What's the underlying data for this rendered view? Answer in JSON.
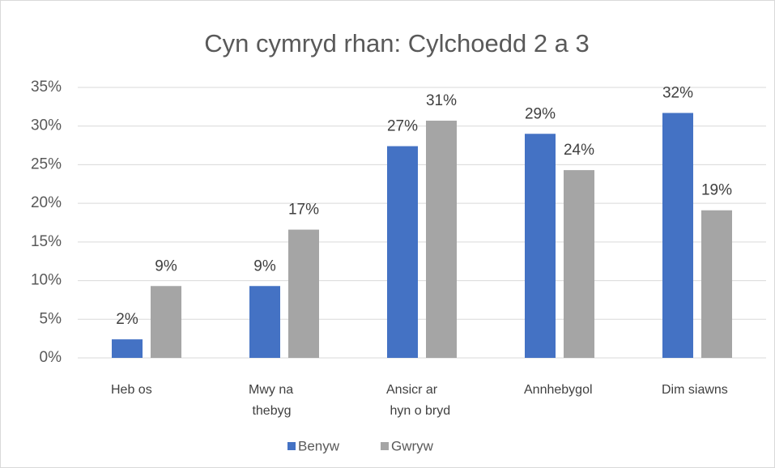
{
  "chart_data": {
    "type": "bar",
    "title": "Cyn cymryd rhan: Cylchoedd 2 a 3",
    "categories": [
      "Heb os",
      "Mwy na thebyg",
      "Ansicr ar hyn o bryd",
      "Annhebygol",
      "Dim siawns"
    ],
    "series": [
      {
        "name": "Benyw",
        "color": "#4472c4",
        "values": [
          2.4,
          9.3,
          27.4,
          29,
          31.7
        ],
        "value_labels": [
          "2%",
          "9%",
          "27%",
          "29%",
          "32%"
        ]
      },
      {
        "name": "Gwryw",
        "color": "#a5a5a5",
        "values": [
          9.3,
          16.6,
          30.7,
          24.3,
          19.1
        ],
        "value_labels": [
          "9%",
          "17%",
          "31%",
          "24%",
          "19%"
        ]
      }
    ],
    "ylim": [
      0,
      35
    ],
    "yticks": [
      {
        "value": 0,
        "label": "0%"
      },
      {
        "value": 5,
        "label": "5%"
      },
      {
        "value": 10,
        "label": "10%"
      },
      {
        "value": 15,
        "label": "15%"
      },
      {
        "value": 20,
        "label": "20%"
      },
      {
        "value": 25,
        "label": "25%"
      },
      {
        "value": 30,
        "label": "30%"
      },
      {
        "value": 35,
        "label": "35%"
      }
    ],
    "grid": true,
    "legend": "bottom"
  }
}
